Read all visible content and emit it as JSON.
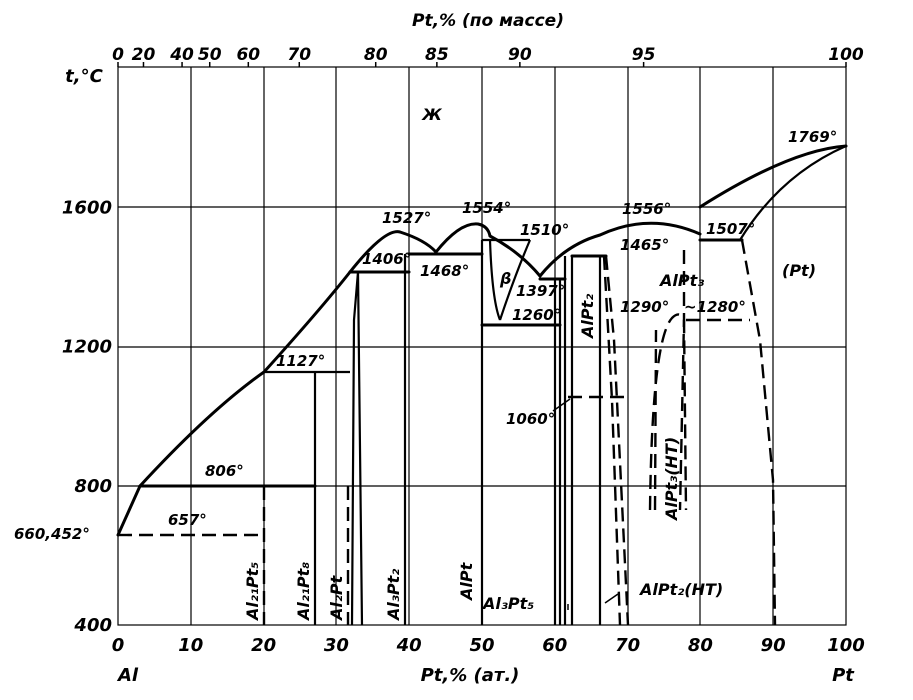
{
  "top_axis": {
    "title": "Pt,% (по массе)",
    "ticks": [
      {
        "label": "0",
        "at": 0
      },
      {
        "label": "20",
        "at": 3.5
      },
      {
        "label": "40",
        "at": 8.8
      },
      {
        "label": "50",
        "at": 12.6
      },
      {
        "label": "60",
        "at": 17.9
      },
      {
        "label": "70",
        "at": 24.9
      },
      {
        "label": "80",
        "at": 35.4
      },
      {
        "label": "85",
        "at": 43.8
      },
      {
        "label": "90",
        "at": 55.2
      },
      {
        "label": "95",
        "at": 72.2
      },
      {
        "label": "100",
        "at": 100
      }
    ]
  },
  "y_axis": {
    "title": "t,°C",
    "ticks": [
      {
        "label": "1600",
        "value": 1600
      },
      {
        "label": "1200",
        "value": 1200
      },
      {
        "label": "800",
        "value": 800
      },
      {
        "label": "400",
        "value": 400
      }
    ]
  },
  "bottom_axis": {
    "title": "Pt,% (ат.)",
    "ticks": [
      "0",
      "10",
      "20",
      "30",
      "40",
      "50",
      "60",
      "70",
      "80",
      "90",
      "100"
    ],
    "left_element": "Al",
    "right_element": "Pt"
  },
  "temperature_labels": {
    "t660": "660,452°",
    "t657": "657°",
    "t806": "806°",
    "t1127": "1127°",
    "t1406": "1406°",
    "t1527": "1527°",
    "t1468": "1468°",
    "t1554": "1554°",
    "t1510": "1510°",
    "t1397": "1397°",
    "t1260": "1260°",
    "t1060": "1060°",
    "t1465": "1465°",
    "t1556": "1556°",
    "t1507": "1507°",
    "t1290": "1290°",
    "t1280": "~1280°",
    "t1769": "1769°"
  },
  "phase_labels": {
    "liquid": "Ж",
    "beta": "β",
    "pt_solid": "(Pt)",
    "al21pt5": "Al₂₁Pt₅",
    "al21pt8": "Al₂₁Pt₈",
    "al2pt": "Al₂Pt",
    "al3pt2": "Al₃Pt₂",
    "alpt": "AlPt",
    "al3pt5": "Al₃Pt₅",
    "alpt2": "AlPt₂",
    "alpt3": "AlPt₃",
    "alpt3_ht": "AlPt₃(HT)",
    "alpt2_ht": "AlPt₂(HT)"
  }
}
